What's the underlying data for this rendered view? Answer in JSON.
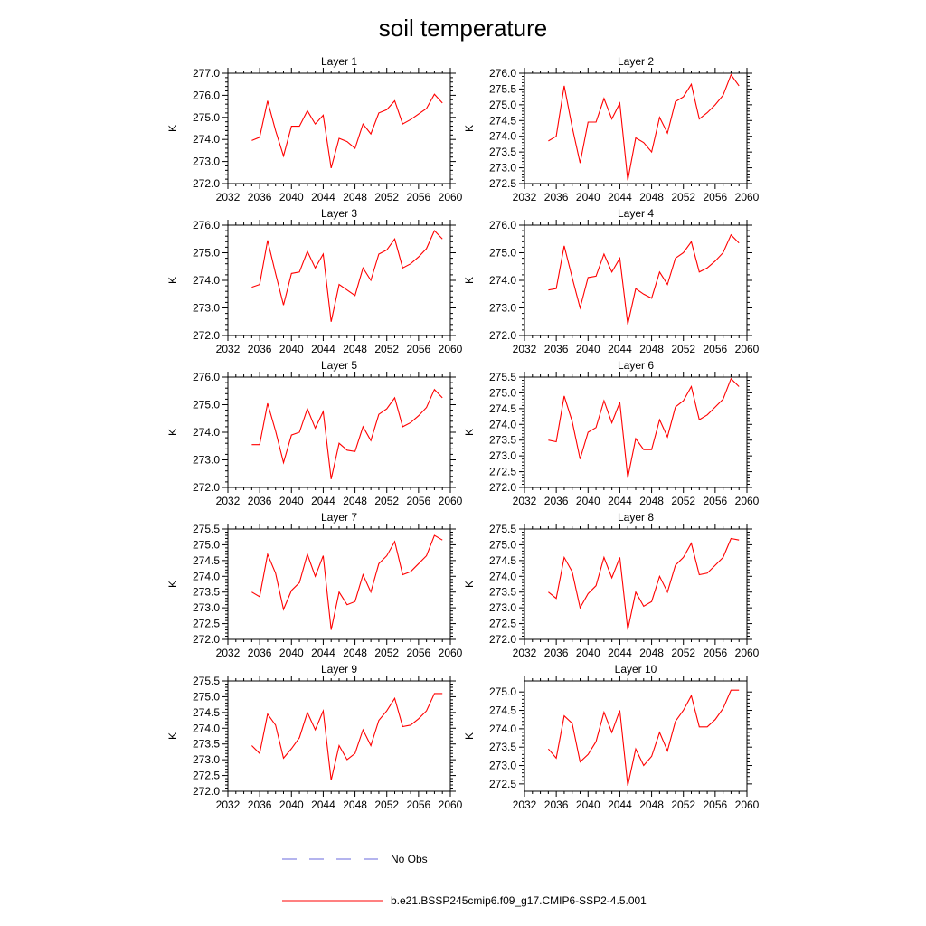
{
  "title": "soil temperature",
  "chart_data": [
    {
      "type": "line",
      "title": "Layer 1",
      "ylabel": "K",
      "xlim": [
        2032,
        2060
      ],
      "ylim": [
        272.0,
        277.0
      ],
      "xticks": [
        "2032",
        "2036",
        "2040",
        "2044",
        "2048",
        "2052",
        "2056",
        "2060"
      ],
      "yticks": [
        "272.0",
        "273.0",
        "274.0",
        "275.0",
        "276.0",
        "277.0"
      ],
      "x": [
        2035,
        2036,
        2037,
        2038,
        2039,
        2040,
        2041,
        2042,
        2043,
        2044,
        2045,
        2046,
        2047,
        2048,
        2049,
        2050,
        2051,
        2052,
        2053,
        2054,
        2055,
        2056,
        2057,
        2058,
        2059
      ],
      "series": [
        {
          "name": "b.e21.BSSP245cmip6.f09_g17.CMIP6-SSP2-4.5.001",
          "color": "#ff0000",
          "values": [
            273.95,
            274.1,
            275.75,
            274.4,
            273.25,
            274.6,
            274.6,
            275.3,
            274.7,
            275.1,
            272.7,
            274.05,
            273.9,
            273.6,
            274.7,
            274.25,
            275.2,
            275.35,
            275.75,
            274.7,
            274.9,
            275.15,
            275.4,
            276.05,
            275.65
          ]
        }
      ]
    },
    {
      "type": "line",
      "title": "Layer 2",
      "ylabel": "K",
      "xlim": [
        2032,
        2060
      ],
      "ylim": [
        272.5,
        276.0
      ],
      "xticks": [
        "2032",
        "2036",
        "2040",
        "2044",
        "2048",
        "2052",
        "2056",
        "2060"
      ],
      "yticks": [
        "272.5",
        "273.0",
        "273.5",
        "274.0",
        "274.5",
        "275.0",
        "275.5",
        "276.0"
      ],
      "x": [
        2035,
        2036,
        2037,
        2038,
        2039,
        2040,
        2041,
        2042,
        2043,
        2044,
        2045,
        2046,
        2047,
        2048,
        2049,
        2050,
        2051,
        2052,
        2053,
        2054,
        2055,
        2056,
        2057,
        2058,
        2059
      ],
      "series": [
        {
          "name": "b.e21.BSSP245cmip6.f09_g17.CMIP6-SSP2-4.5.001",
          "color": "#ff0000",
          "values": [
            273.85,
            274.0,
            275.6,
            274.3,
            273.15,
            274.45,
            274.45,
            275.2,
            274.55,
            275.05,
            272.6,
            273.95,
            273.8,
            273.5,
            274.6,
            274.1,
            275.1,
            275.25,
            275.65,
            274.55,
            274.75,
            275.0,
            275.3,
            275.95,
            275.6
          ]
        }
      ]
    },
    {
      "type": "line",
      "title": "Layer 3",
      "ylabel": "K",
      "xlim": [
        2032,
        2060
      ],
      "ylim": [
        272.0,
        276.0
      ],
      "xticks": [
        "2032",
        "2036",
        "2040",
        "2044",
        "2048",
        "2052",
        "2056",
        "2060"
      ],
      "yticks": [
        "272.0",
        "273.0",
        "274.0",
        "275.0",
        "276.0"
      ],
      "x": [
        2035,
        2036,
        2037,
        2038,
        2039,
        2040,
        2041,
        2042,
        2043,
        2044,
        2045,
        2046,
        2047,
        2048,
        2049,
        2050,
        2051,
        2052,
        2053,
        2054,
        2055,
        2056,
        2057,
        2058,
        2059
      ],
      "series": [
        {
          "name": "b.e21.BSSP245cmip6.f09_g17.CMIP6-SSP2-4.5.001",
          "color": "#ff0000",
          "values": [
            273.75,
            273.85,
            275.45,
            274.25,
            273.1,
            274.25,
            274.3,
            275.05,
            274.45,
            274.95,
            272.5,
            273.85,
            273.65,
            273.45,
            274.45,
            274.0,
            274.95,
            275.1,
            275.5,
            274.45,
            274.6,
            274.85,
            275.15,
            275.8,
            275.5
          ]
        }
      ]
    },
    {
      "type": "line",
      "title": "Layer 4",
      "ylabel": "K",
      "xlim": [
        2032,
        2060
      ],
      "ylim": [
        272.0,
        276.0
      ],
      "xticks": [
        "2032",
        "2036",
        "2040",
        "2044",
        "2048",
        "2052",
        "2056",
        "2060"
      ],
      "yticks": [
        "272.0",
        "273.0",
        "274.0",
        "275.0",
        "276.0"
      ],
      "x": [
        2035,
        2036,
        2037,
        2038,
        2039,
        2040,
        2041,
        2042,
        2043,
        2044,
        2045,
        2046,
        2047,
        2048,
        2049,
        2050,
        2051,
        2052,
        2053,
        2054,
        2055,
        2056,
        2057,
        2058,
        2059
      ],
      "series": [
        {
          "name": "b.e21.BSSP245cmip6.f09_g17.CMIP6-SSP2-4.5.001",
          "color": "#ff0000",
          "values": [
            273.65,
            273.7,
            275.25,
            274.1,
            273.0,
            274.1,
            274.15,
            274.95,
            274.3,
            274.8,
            272.4,
            273.7,
            273.5,
            273.35,
            274.3,
            273.85,
            274.8,
            275.0,
            275.4,
            274.3,
            274.45,
            274.7,
            275.0,
            275.65,
            275.35
          ]
        }
      ]
    },
    {
      "type": "line",
      "title": "Layer 5",
      "ylabel": "K",
      "xlim": [
        2032,
        2060
      ],
      "ylim": [
        272.0,
        276.0
      ],
      "xticks": [
        "2032",
        "2036",
        "2040",
        "2044",
        "2048",
        "2052",
        "2056",
        "2060"
      ],
      "yticks": [
        "272.0",
        "273.0",
        "274.0",
        "275.0",
        "276.0"
      ],
      "x": [
        2035,
        2036,
        2037,
        2038,
        2039,
        2040,
        2041,
        2042,
        2043,
        2044,
        2045,
        2046,
        2047,
        2048,
        2049,
        2050,
        2051,
        2052,
        2053,
        2054,
        2055,
        2056,
        2057,
        2058,
        2059
      ],
      "series": [
        {
          "name": "b.e21.BSSP245cmip6.f09_g17.CMIP6-SSP2-4.5.001",
          "color": "#ff0000",
          "values": [
            273.55,
            273.55,
            275.05,
            274.05,
            272.9,
            273.9,
            274.0,
            274.85,
            274.15,
            274.75,
            272.3,
            273.6,
            273.35,
            273.3,
            274.2,
            273.7,
            274.65,
            274.85,
            275.25,
            274.2,
            274.35,
            274.6,
            274.9,
            275.55,
            275.25
          ]
        }
      ]
    },
    {
      "type": "line",
      "title": "Layer 6",
      "ylabel": "K",
      "xlim": [
        2032,
        2060
      ],
      "ylim": [
        272.0,
        275.5
      ],
      "xticks": [
        "2032",
        "2036",
        "2040",
        "2044",
        "2048",
        "2052",
        "2056",
        "2060"
      ],
      "yticks": [
        "272.0",
        "272.5",
        "273.0",
        "273.5",
        "274.0",
        "274.5",
        "275.0",
        "275.5"
      ],
      "x": [
        2035,
        2036,
        2037,
        2038,
        2039,
        2040,
        2041,
        2042,
        2043,
        2044,
        2045,
        2046,
        2047,
        2048,
        2049,
        2050,
        2051,
        2052,
        2053,
        2054,
        2055,
        2056,
        2057,
        2058,
        2059
      ],
      "series": [
        {
          "name": "b.e21.BSSP245cmip6.f09_g17.CMIP6-SSP2-4.5.001",
          "color": "#ff0000",
          "values": [
            273.5,
            273.45,
            274.9,
            274.1,
            272.9,
            273.75,
            273.9,
            274.75,
            274.05,
            274.7,
            272.3,
            273.55,
            273.2,
            273.2,
            274.15,
            273.6,
            274.55,
            274.75,
            275.2,
            274.15,
            274.3,
            274.55,
            274.8,
            275.45,
            275.2
          ]
        }
      ]
    },
    {
      "type": "line",
      "title": "Layer 7",
      "ylabel": "K",
      "xlim": [
        2032,
        2060
      ],
      "ylim": [
        272.0,
        275.5
      ],
      "xticks": [
        "2032",
        "2036",
        "2040",
        "2044",
        "2048",
        "2052",
        "2056",
        "2060"
      ],
      "yticks": [
        "272.0",
        "272.5",
        "273.0",
        "273.5",
        "274.0",
        "274.5",
        "275.0",
        "275.5"
      ],
      "x": [
        2035,
        2036,
        2037,
        2038,
        2039,
        2040,
        2041,
        2042,
        2043,
        2044,
        2045,
        2046,
        2047,
        2048,
        2049,
        2050,
        2051,
        2052,
        2053,
        2054,
        2055,
        2056,
        2057,
        2058,
        2059
      ],
      "series": [
        {
          "name": "b.e21.BSSP245cmip6.f09_g17.CMIP6-SSP2-4.5.001",
          "color": "#ff0000",
          "values": [
            273.5,
            273.35,
            274.7,
            274.1,
            272.95,
            273.55,
            273.8,
            274.7,
            274.0,
            274.65,
            272.3,
            273.5,
            273.1,
            273.2,
            274.05,
            273.5,
            274.4,
            274.65,
            275.1,
            274.05,
            274.15,
            274.4,
            274.65,
            275.3,
            275.15
          ]
        }
      ]
    },
    {
      "type": "line",
      "title": "Layer 8",
      "ylabel": "K",
      "xlim": [
        2032,
        2060
      ],
      "ylim": [
        272.0,
        275.5
      ],
      "xticks": [
        "2032",
        "2036",
        "2040",
        "2044",
        "2048",
        "2052",
        "2056",
        "2060"
      ],
      "yticks": [
        "272.0",
        "272.5",
        "273.0",
        "273.5",
        "274.0",
        "274.5",
        "275.0",
        "275.5"
      ],
      "x": [
        2035,
        2036,
        2037,
        2038,
        2039,
        2040,
        2041,
        2042,
        2043,
        2044,
        2045,
        2046,
        2047,
        2048,
        2049,
        2050,
        2051,
        2052,
        2053,
        2054,
        2055,
        2056,
        2057,
        2058,
        2059
      ],
      "series": [
        {
          "name": "b.e21.BSSP245cmip6.f09_g17.CMIP6-SSP2-4.5.001",
          "color": "#ff0000",
          "values": [
            273.5,
            273.3,
            274.6,
            274.15,
            273.0,
            273.45,
            273.7,
            274.6,
            273.95,
            274.6,
            272.3,
            273.5,
            273.05,
            273.2,
            274.0,
            273.5,
            274.35,
            274.6,
            275.05,
            274.05,
            274.1,
            274.35,
            274.6,
            275.2,
            275.15
          ]
        }
      ]
    },
    {
      "type": "line",
      "title": "Layer 9",
      "ylabel": "K",
      "xlim": [
        2032,
        2060
      ],
      "ylim": [
        272.0,
        275.5
      ],
      "xticks": [
        "2032",
        "2036",
        "2040",
        "2044",
        "2048",
        "2052",
        "2056",
        "2060"
      ],
      "yticks": [
        "272.0",
        "272.5",
        "273.0",
        "273.5",
        "274.0",
        "274.5",
        "275.0",
        "275.5"
      ],
      "x": [
        2035,
        2036,
        2037,
        2038,
        2039,
        2040,
        2041,
        2042,
        2043,
        2044,
        2045,
        2046,
        2047,
        2048,
        2049,
        2050,
        2051,
        2052,
        2053,
        2054,
        2055,
        2056,
        2057,
        2058,
        2059
      ],
      "series": [
        {
          "name": "b.e21.BSSP245cmip6.f09_g17.CMIP6-SSP2-4.5.001",
          "color": "#ff0000",
          "values": [
            273.45,
            273.2,
            274.45,
            274.1,
            273.05,
            273.35,
            273.7,
            274.5,
            273.95,
            274.55,
            272.35,
            273.45,
            273.0,
            273.2,
            273.95,
            273.45,
            274.25,
            274.55,
            274.95,
            274.05,
            274.1,
            274.3,
            274.55,
            275.1,
            275.1
          ]
        }
      ]
    },
    {
      "type": "line",
      "title": "Layer 10",
      "ylabel": "K",
      "xlim": [
        2032,
        2060
      ],
      "ylim": [
        272.3,
        275.3
      ],
      "xticks": [
        "2032",
        "2036",
        "2040",
        "2044",
        "2048",
        "2052",
        "2056",
        "2060"
      ],
      "yticks": [
        "272.5",
        "273.0",
        "273.5",
        "274.0",
        "274.5",
        "275.0"
      ],
      "x": [
        2035,
        2036,
        2037,
        2038,
        2039,
        2040,
        2041,
        2042,
        2043,
        2044,
        2045,
        2046,
        2047,
        2048,
        2049,
        2050,
        2051,
        2052,
        2053,
        2054,
        2055,
        2056,
        2057,
        2058,
        2059
      ],
      "series": [
        {
          "name": "b.e21.BSSP245cmip6.f09_g17.CMIP6-SSP2-4.5.001",
          "color": "#ff0000",
          "values": [
            273.45,
            273.2,
            274.35,
            274.15,
            273.1,
            273.3,
            273.65,
            274.45,
            273.9,
            274.5,
            272.45,
            273.45,
            273.0,
            273.25,
            273.9,
            273.4,
            274.2,
            274.5,
            274.9,
            274.05,
            274.05,
            274.25,
            274.55,
            275.05,
            275.05
          ]
        }
      ]
    }
  ],
  "legend": {
    "items": [
      {
        "label": "No Obs",
        "color": "#6a6adc",
        "style": "dashed"
      },
      {
        "label": "b.e21.BSSP245cmip6.f09_g17.CMIP6-SSP2-4.5.001",
        "color": "#ff0000",
        "style": "solid"
      }
    ]
  }
}
